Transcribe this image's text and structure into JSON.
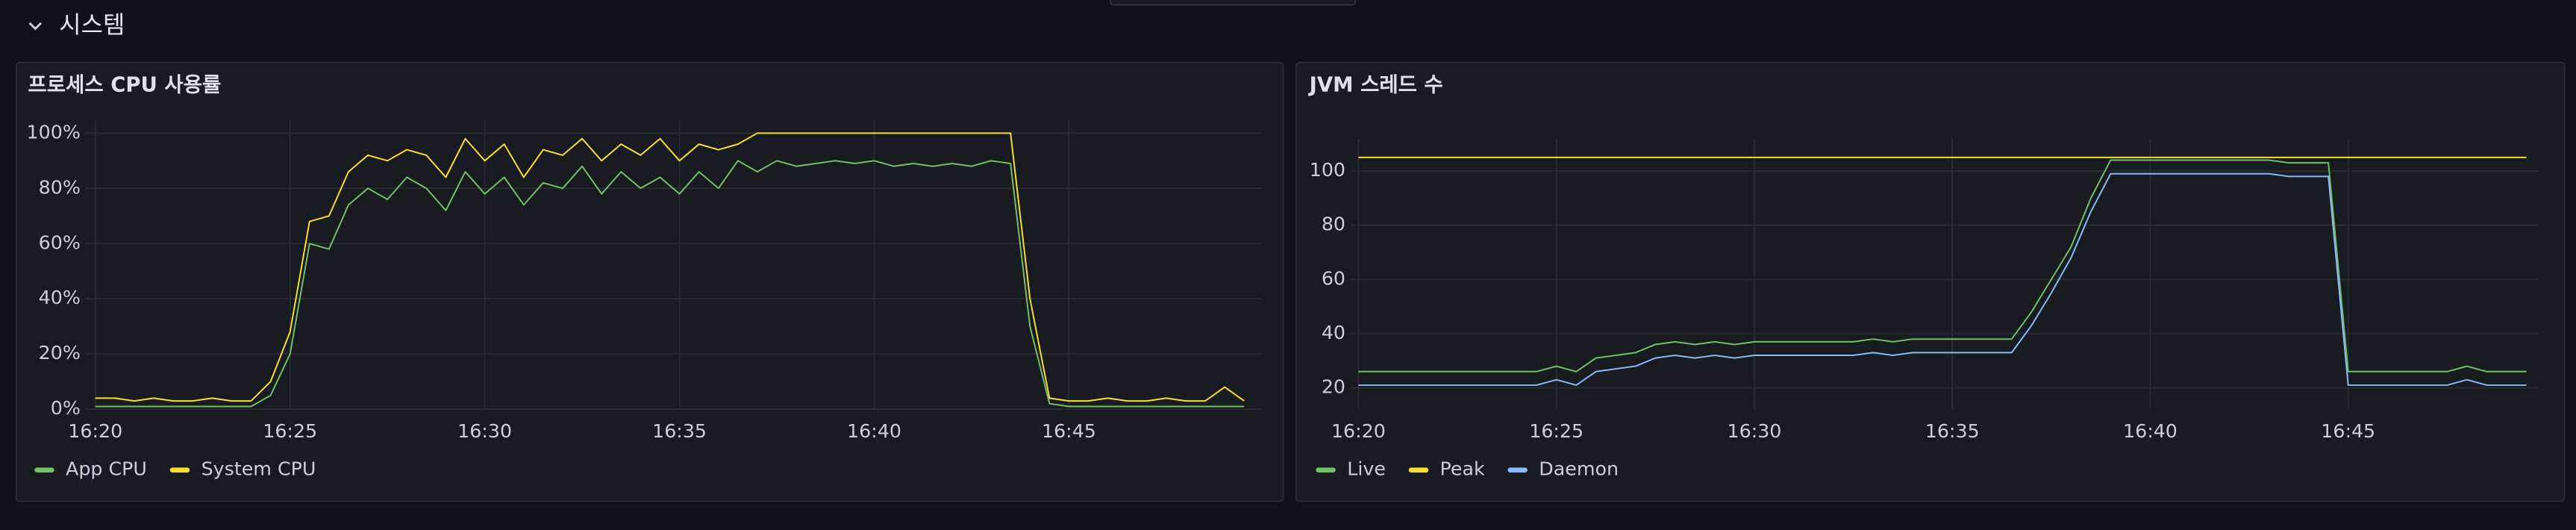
{
  "section": {
    "title": "시스템"
  },
  "chart_data": [
    {
      "type": "line",
      "title": "프로세스 CPU 사용률",
      "grid": true,
      "legend": "bottom",
      "x": [
        20,
        20.5,
        21,
        21.5,
        22,
        22.5,
        23,
        23.5,
        24,
        24.5,
        25,
        25.5,
        26,
        26.5,
        27,
        27.5,
        28,
        28.5,
        29,
        29.5,
        30,
        30.5,
        31,
        31.5,
        32,
        32.5,
        33,
        33.5,
        34,
        34.5,
        35,
        35.5,
        36,
        36.5,
        37,
        37.5,
        38,
        38.5,
        39,
        39.5,
        40,
        40.5,
        41,
        41.5,
        42,
        42.5,
        43,
        43.5,
        44,
        44.5,
        45,
        45.5,
        46,
        46.5,
        47,
        47.5,
        48,
        48.5,
        49,
        49.5
      ],
      "xlim": [
        19.83,
        49.95
      ],
      "xticks": [
        {
          "value": 20,
          "label": "16:20"
        },
        {
          "value": 25,
          "label": "16:25"
        },
        {
          "value": 30,
          "label": "16:30"
        },
        {
          "value": 35,
          "label": "16:35"
        },
        {
          "value": 40,
          "label": "16:40"
        },
        {
          "value": 45,
          "label": "16:45"
        }
      ],
      "ylim": [
        0,
        100
      ],
      "yticks": [
        {
          "value": 0,
          "label": "0%"
        },
        {
          "value": 20,
          "label": "20%"
        },
        {
          "value": 40,
          "label": "40%"
        },
        {
          "value": 60,
          "label": "60%"
        },
        {
          "value": 80,
          "label": "80%"
        },
        {
          "value": 100,
          "label": "100%"
        }
      ],
      "series": [
        {
          "name": "App CPU",
          "color": "#73bf69",
          "values": [
            1,
            1,
            1,
            1,
            1,
            1,
            1,
            1,
            1,
            5,
            20,
            60,
            58,
            74,
            80,
            76,
            84,
            80,
            72,
            86,
            78,
            84,
            74,
            82,
            80,
            88,
            78,
            86,
            80,
            84,
            78,
            86,
            80,
            90,
            86,
            90,
            88,
            89,
            90,
            89,
            90,
            88,
            89,
            88,
            89,
            88,
            90,
            89,
            30,
            2,
            1,
            1,
            1,
            1,
            1,
            1,
            1,
            1,
            1,
            1
          ]
        },
        {
          "name": "System CPU",
          "color": "#fade2a",
          "values": [
            4,
            4,
            3,
            4,
            3,
            3,
            4,
            3,
            3,
            10,
            28,
            68,
            70,
            86,
            92,
            90,
            94,
            92,
            84,
            98,
            90,
            96,
            84,
            94,
            92,
            98,
            90,
            96,
            92,
            98,
            90,
            96,
            94,
            96,
            100,
            100,
            100,
            100,
            100,
            100,
            100,
            100,
            100,
            100,
            100,
            100,
            100,
            100,
            40,
            4,
            3,
            3,
            4,
            3,
            3,
            4,
            3,
            3,
            8,
            3
          ]
        }
      ]
    },
    {
      "type": "line",
      "title": "JVM 스레드 수",
      "grid": true,
      "legend": "bottom",
      "x": [
        20,
        20.5,
        21,
        21.5,
        22,
        22.5,
        23,
        23.5,
        24,
        24.5,
        25,
        25.5,
        26,
        26.5,
        27,
        27.5,
        28,
        28.5,
        29,
        29.5,
        30,
        30.5,
        31,
        31.5,
        32,
        32.5,
        33,
        33.5,
        34,
        34.5,
        35,
        35.5,
        36,
        36.5,
        37,
        37.5,
        38,
        38.5,
        39,
        39.5,
        40,
        40.5,
        41,
        41.5,
        42,
        42.5,
        43,
        43.5,
        44,
        44.5,
        45,
        45.5,
        46,
        46.5,
        47,
        47.5,
        48,
        48.5,
        49,
        49.5
      ],
      "xlim": [
        19.88,
        49.8
      ],
      "xticks": [
        {
          "value": 20,
          "label": "16:20"
        },
        {
          "value": 25,
          "label": "16:25"
        },
        {
          "value": 30,
          "label": "16:30"
        },
        {
          "value": 35,
          "label": "16:35"
        },
        {
          "value": 40,
          "label": "16:40"
        },
        {
          "value": 45,
          "label": "16:45"
        }
      ],
      "ylim": [
        12,
        107
      ],
      "yticks": [
        20,
        40,
        60,
        80,
        100
      ],
      "series": [
        {
          "name": "Live",
          "color": "#73bf69",
          "values": [
            26,
            26,
            26,
            26,
            26,
            26,
            26,
            26,
            26,
            26,
            28,
            26,
            31,
            32,
            33,
            36,
            37,
            36,
            37,
            36,
            37,
            37,
            37,
            37,
            37,
            37,
            38,
            37,
            38,
            38,
            38,
            38,
            38,
            38,
            48,
            60,
            72,
            90,
            104,
            104,
            104,
            104,
            104,
            104,
            104,
            104,
            104,
            103,
            103,
            103,
            26,
            26,
            26,
            26,
            26,
            26,
            28,
            26,
            26,
            26
          ]
        },
        {
          "name": "Peak",
          "color": "#fade2a",
          "values": [
            105,
            105,
            105,
            105,
            105,
            105,
            105,
            105,
            105,
            105,
            105,
            105,
            105,
            105,
            105,
            105,
            105,
            105,
            105,
            105,
            105,
            105,
            105,
            105,
            105,
            105,
            105,
            105,
            105,
            105,
            105,
            105,
            105,
            105,
            105,
            105,
            105,
            105,
            105,
            105,
            105,
            105,
            105,
            105,
            105,
            105,
            105,
            105,
            105,
            105,
            105,
            105,
            105,
            105,
            105,
            105,
            105,
            105,
            105,
            105
          ]
        },
        {
          "name": "Daemon",
          "color": "#8ab8ff",
          "values": [
            21,
            21,
            21,
            21,
            21,
            21,
            21,
            21,
            21,
            21,
            23,
            21,
            26,
            27,
            28,
            31,
            32,
            31,
            32,
            31,
            32,
            32,
            32,
            32,
            32,
            32,
            33,
            32,
            33,
            33,
            33,
            33,
            33,
            33,
            43,
            55,
            68,
            85,
            99,
            99,
            99,
            99,
            99,
            99,
            99,
            99,
            99,
            98,
            98,
            98,
            21,
            21,
            21,
            21,
            21,
            21,
            23,
            21,
            21,
            21
          ]
        }
      ]
    }
  ]
}
